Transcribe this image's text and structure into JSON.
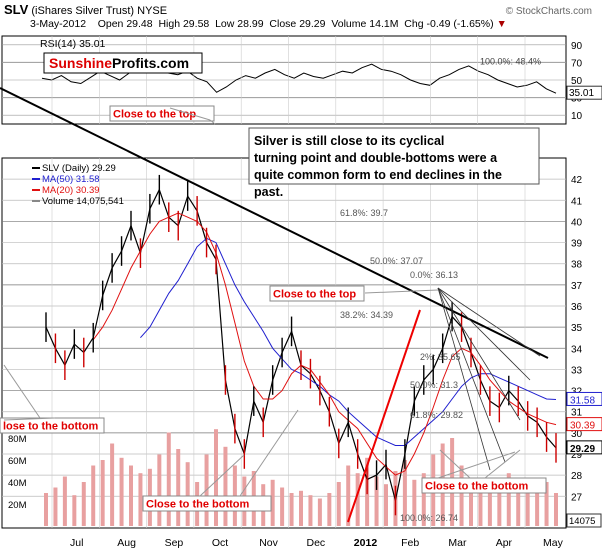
{
  "header": {
    "symbol": "SLV",
    "name": "(iShares Silver Trust)",
    "exchange": "NYSE",
    "date": "3-May-2012",
    "open_label": "Open",
    "open": "29.48",
    "high_label": "High",
    "high": "29.58",
    "low_label": "Low",
    "low": "28.99",
    "close_label": "Close",
    "close": "29.29",
    "volume_label": "Volume",
    "volume": "14.1M",
    "chg_label": "Chg",
    "chg": "-0.49 (-1.65%)",
    "watermark": "© StockCharts.com"
  },
  "logo": {
    "part1": "Sunshine",
    "part2": "Profits.com"
  },
  "colors": {
    "price": "#000000",
    "ma50": "#1f1fcf",
    "ma20": "#e01010",
    "volume": "#e8a0a0",
    "annotation": "#e00000"
  },
  "chart_data": [
    {
      "type": "line",
      "panel": "RSI",
      "title": "RSI(14) 35.01",
      "ylim": [
        0,
        100
      ],
      "yticks": [
        10,
        30,
        50,
        70,
        90
      ],
      "current": "35.01",
      "levels_text": [
        "100.0%",
        "48.4%"
      ],
      "series": [
        {
          "name": "RSI(14)",
          "values": [
            52,
            50,
            55,
            48,
            46,
            53,
            60,
            55,
            50,
            58,
            62,
            66,
            64,
            58,
            56,
            60,
            52,
            48,
            36,
            42,
            50,
            55,
            52,
            58,
            62,
            56,
            52,
            58,
            54,
            52,
            56,
            60,
            58,
            64,
            68,
            62,
            60,
            56,
            50,
            46,
            44,
            52,
            56,
            62,
            66,
            60,
            56,
            50,
            46,
            42,
            44,
            48,
            40,
            35
          ]
        }
      ]
    },
    {
      "type": "line",
      "panel": "price",
      "legend": [
        "SLV (Daily) 29.29",
        "MA(50) 31.58",
        "MA(20) 30.39",
        "Volume 14,075,541"
      ],
      "x_labels": [
        "Jul",
        "Aug",
        "Sep",
        "Oct",
        "Nov",
        "Dec",
        "2012",
        "Feb",
        "Mar",
        "Apr",
        "May"
      ],
      "ylim": [
        25.5,
        43
      ],
      "yticks": [
        27,
        28,
        29,
        30,
        31,
        32,
        33,
        34,
        35,
        36,
        37,
        38,
        39,
        40,
        41,
        42
      ],
      "price_tags": [
        "31.58",
        "30.39",
        "29.29"
      ],
      "series": [
        {
          "name": "SLV",
          "values": [
            35.0,
            34.0,
            33.2,
            34.2,
            33.8,
            34.5,
            36.5,
            37.8,
            38.6,
            39.8,
            38.5,
            40.6,
            41.5,
            40.2,
            39.8,
            41.2,
            40.5,
            39.0,
            38.2,
            32.5,
            30.2,
            29.0,
            31.5,
            30.5,
            32.5,
            33.8,
            34.8,
            33.2,
            32.8,
            32.0,
            31.0,
            29.5,
            30.5,
            29.0,
            27.8,
            28.0,
            28.5,
            26.8,
            29.0,
            31.5,
            32.5,
            33.0,
            34.0,
            35.5,
            35.0,
            33.8,
            32.5,
            31.5,
            31.2,
            32.0,
            31.5,
            30.8,
            30.5,
            29.8,
            29.29
          ]
        },
        {
          "name": "MA(50)",
          "values": [
            null,
            null,
            null,
            null,
            null,
            null,
            null,
            null,
            null,
            null,
            34.5,
            35.0,
            35.8,
            36.6,
            37.2,
            38.0,
            38.8,
            39.2,
            39.0,
            38.0,
            37.0,
            36.2,
            35.5,
            34.8,
            34.0,
            33.5,
            33.0,
            32.8,
            32.5,
            32.2,
            31.8,
            31.5,
            31.0,
            30.6,
            30.2,
            29.8,
            29.6,
            29.4,
            29.4,
            29.8,
            30.2,
            30.6,
            31.0,
            31.6,
            32.2,
            32.6,
            32.8,
            32.8,
            32.6,
            32.4,
            32.2,
            32.0,
            31.8,
            31.6,
            31.58
          ]
        },
        {
          "name": "MA(20)",
          "values": [
            null,
            null,
            null,
            null,
            null,
            34.4,
            35.0,
            35.8,
            36.8,
            37.8,
            38.6,
            39.4,
            40.0,
            40.2,
            40.4,
            40.2,
            40.0,
            39.5,
            38.5,
            37.0,
            35.2,
            33.4,
            32.2,
            31.6,
            31.6,
            32.0,
            32.8,
            33.2,
            33.0,
            32.4,
            31.8,
            31.0,
            30.6,
            30.2,
            29.5,
            28.8,
            28.4,
            28.0,
            28.2,
            29.0,
            30.0,
            31.2,
            32.5,
            33.6,
            34.0,
            33.8,
            33.2,
            32.5,
            32.0,
            31.5,
            31.2,
            30.9,
            30.7,
            30.5,
            30.39
          ]
        }
      ],
      "volume_axis": [
        "20M",
        "40M",
        "60M",
        "80M"
      ],
      "volume_values": [
        30,
        35,
        45,
        28,
        40,
        55,
        60,
        75,
        62,
        55,
        48,
        52,
        65,
        85,
        70,
        58,
        40,
        65,
        88,
        72,
        55,
        45,
        50,
        38,
        42,
        35,
        30,
        32,
        28,
        25,
        30,
        40,
        55,
        48,
        62,
        45,
        38,
        50,
        60,
        42,
        48,
        65,
        75,
        80,
        55,
        40,
        38,
        35,
        42,
        48,
        38,
        32,
        35,
        40,
        30
      ],
      "volume_last": "14075"
    }
  ],
  "fib_labels": [
    "61.8%: 39.7",
    "50.0%: 37.07",
    "0.0%: 36.13",
    "38.2%: 34.39",
    "2%: 35.65",
    "50.0%: 31.3",
    "61.8%: 29.82",
    "100.0%: 26.74"
  ],
  "annotations": {
    "close_top_1": "Close to the top",
    "close_top_2": "Close to the top",
    "close_bottom_1": "lose to the bottom",
    "close_bottom_2": "Close to the bottom",
    "close_bottom_3": "Close to the bottom",
    "comment": "Silver is still close to its cyclical turning point and double-bottoms were a quite common form to end declines in the past."
  }
}
